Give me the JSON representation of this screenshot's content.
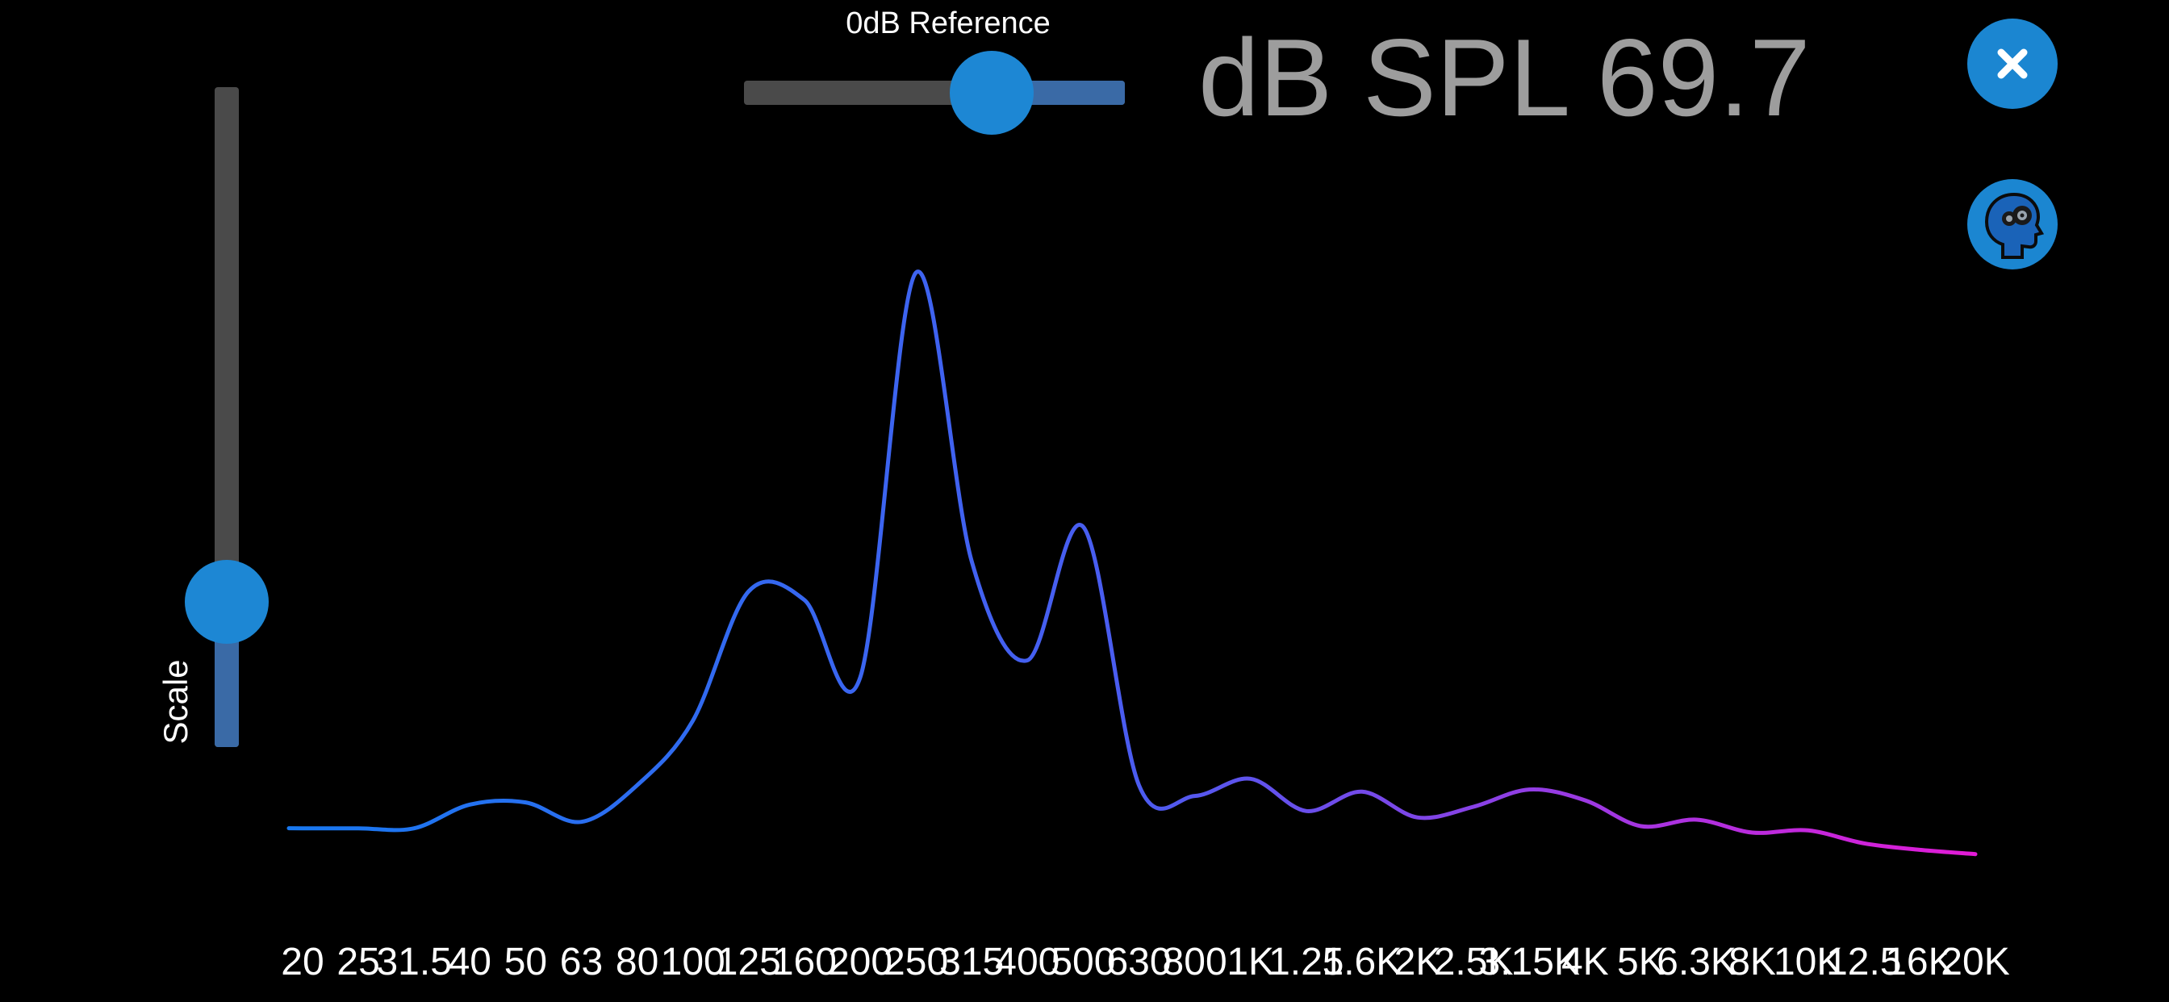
{
  "reference_slider": {
    "label": "0dB Reference",
    "value_fraction": 0.65
  },
  "spl_readout": {
    "text": "dB SPL 69.7"
  },
  "scale_slider": {
    "label": "Scale",
    "value_fraction": 0.22
  },
  "buttons": {
    "close_label": "x",
    "close_icon": "close-icon",
    "profile_icon": "head-gears-icon"
  },
  "colors": {
    "accent": "#1d87d4",
    "track": "#4a4a4a",
    "track_fill": "#3a6aa6",
    "readout": "#9d9d9d",
    "curve_start": "#1878f0",
    "curve_mid": "#4b5cf0",
    "curve_end": "#e31ad6"
  },
  "chart_data": {
    "type": "line",
    "categories": [
      "20",
      "25",
      "31.5",
      "40",
      "50",
      "63",
      "80",
      "100",
      "125",
      "160",
      "200",
      "250",
      "315",
      "400",
      "500",
      "630",
      "800",
      "1K",
      "1.25",
      "1.6K",
      "2K",
      "2.5K",
      "3.15K",
      "4K",
      "5K",
      "6.3K",
      "8K",
      "10K",
      "12.5",
      "16K",
      "20K"
    ],
    "values": [
      2,
      2,
      2,
      13,
      14,
      5,
      22,
      52,
      112,
      108,
      72,
      260,
      126,
      80,
      142,
      22,
      17,
      25,
      10,
      19,
      7,
      12,
      20,
      15,
      3,
      6,
      0,
      1,
      -5,
      -8,
      -10
    ],
    "ylim": [
      -20,
      280
    ]
  }
}
